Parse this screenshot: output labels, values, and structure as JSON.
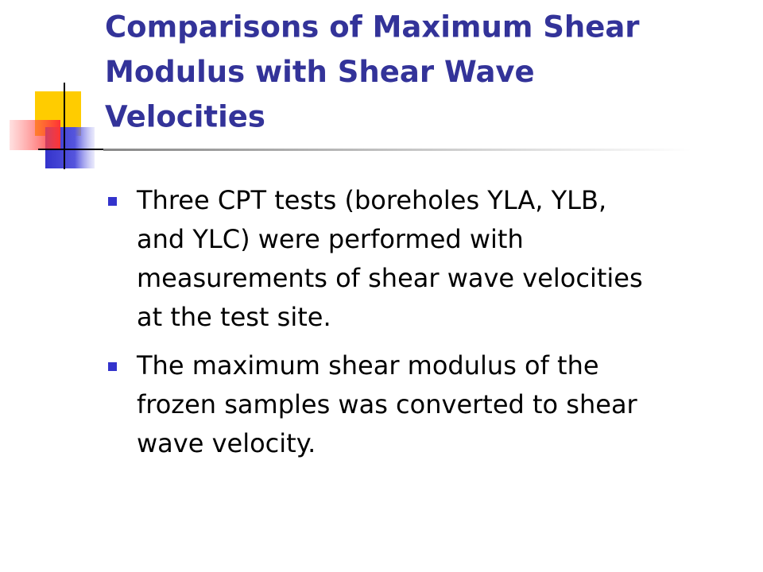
{
  "slide": {
    "title": [
      "Comparisons of Maximum Shear",
      "Modulus with Shear Wave",
      "Velocities"
    ],
    "bullets": [
      [
        "Three CPT tests (boreholes YLA, YLB,",
        "and YLC) were performed with",
        "measurements of shear wave velocities",
        "at the test site."
      ],
      [
        "The maximum shear modulus of the",
        "frozen samples was converted to shear",
        "wave velocity."
      ]
    ]
  }
}
